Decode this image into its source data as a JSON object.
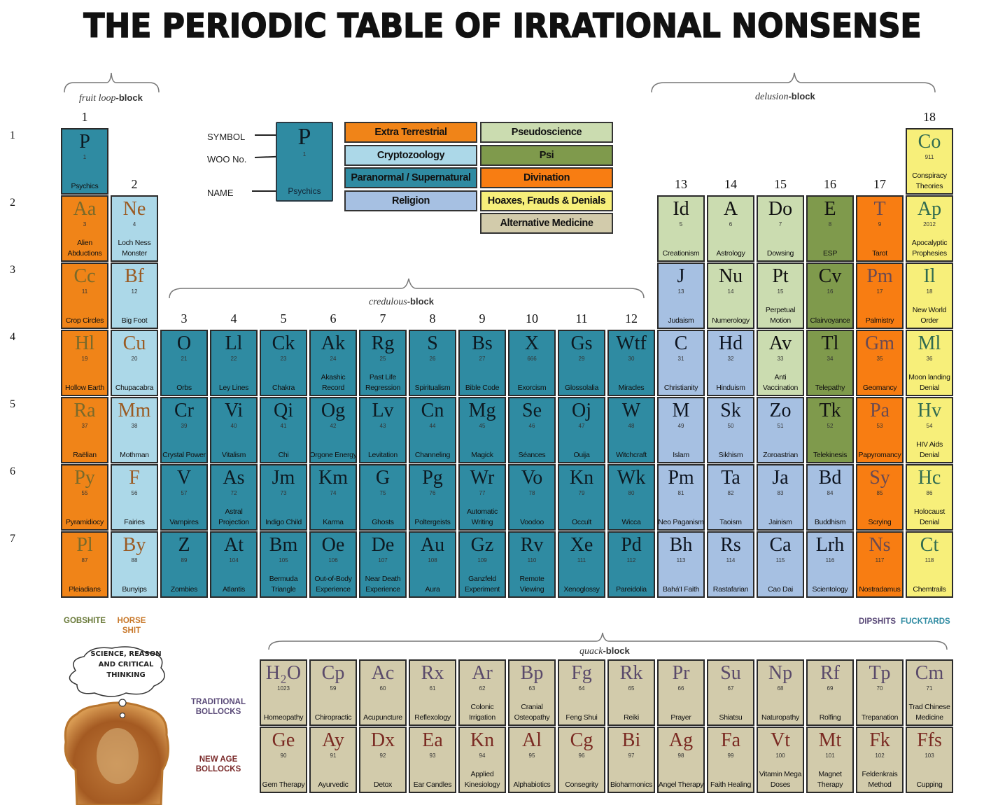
{
  "title": "THE PERIODIC TABLE OF IRRATIONAL NONSENSE",
  "blocks": {
    "fruit_loop": {
      "italic": "fruit loop",
      "bold": "-block"
    },
    "delusion": {
      "italic": "delusion",
      "bold": "-block"
    },
    "credulous": {
      "italic": "credulous",
      "bold": "-block"
    },
    "quack": {
      "italic": "quack",
      "bold": "-block"
    }
  },
  "groups": [
    "1",
    "2",
    "3",
    "4",
    "5",
    "6",
    "7",
    "8",
    "9",
    "10",
    "11",
    "12",
    "13",
    "14",
    "15",
    "16",
    "17",
    "18"
  ],
  "periods": [
    "1",
    "2",
    "3",
    "4",
    "5",
    "6",
    "7"
  ],
  "key": {
    "symbol_label": "SYMBOL",
    "woo_label": "WOO No.",
    "name_label": "NAME",
    "sample": {
      "symbol": "P",
      "number": "1",
      "name": "Psychics"
    }
  },
  "categories": {
    "et": {
      "label": "Extra Terrestrial",
      "bg": "#f08418",
      "fg": "#7a6a2a"
    },
    "crypto": {
      "label": "Cryptozoology",
      "bg": "#acd8e8",
      "fg": "#9a5a22"
    },
    "paranormal": {
      "label": "Paranormal / Supernatural",
      "bg": "#2f8ba2",
      "fg": "#0d1a22"
    },
    "religion": {
      "label": "Religion",
      "bg": "#a6c0e2",
      "fg": "#0d1420"
    },
    "pseudo": {
      "label": "Pseudoscience",
      "bg": "#cbdcb0",
      "fg": "#111"
    },
    "psi": {
      "label": "Psi",
      "bg": "#7f9a4c",
      "fg": "#111"
    },
    "divination": {
      "label": "Divination",
      "bg": "#f87d12",
      "fg": "#6a4a52"
    },
    "hoax": {
      "label": "Hoaxes, Frauds & Denials",
      "bg": "#f7ef7a",
      "fg": "#2f6a50"
    },
    "altmed": {
      "label": "Alternative Medicine",
      "bg": "#d2cbab",
      "fg": "#5a4a6a"
    }
  },
  "legend_order": [
    [
      "et",
      "pseudo"
    ],
    [
      "crypto",
      "psi"
    ],
    [
      "paranormal",
      "divination"
    ],
    [
      "religion",
      "hoax"
    ],
    [
      null,
      "altmed"
    ]
  ],
  "elements": [
    {
      "symbol": "P",
      "number": "1",
      "name": "Psychics",
      "cat": "paranormal",
      "group": 1,
      "period": 1
    },
    {
      "symbol": "Co",
      "number": "911",
      "name": "Conspiracy Theories",
      "cat": "hoax",
      "group": 18,
      "period": 1
    },
    {
      "symbol": "Aa",
      "number": "3",
      "name": "Alien Abductions",
      "cat": "et",
      "group": 1,
      "period": 2
    },
    {
      "symbol": "Ne",
      "number": "4",
      "name": "Loch Ness Monster",
      "cat": "crypto",
      "group": 2,
      "period": 2
    },
    {
      "symbol": "Id",
      "number": "5",
      "name": "Creationism",
      "cat": "pseudo",
      "group": 13,
      "period": 2
    },
    {
      "symbol": "A",
      "number": "6",
      "name": "Astrology",
      "cat": "pseudo",
      "group": 14,
      "period": 2
    },
    {
      "symbol": "Do",
      "number": "7",
      "name": "Dowsing",
      "cat": "pseudo",
      "group": 15,
      "period": 2
    },
    {
      "symbol": "E",
      "number": "8",
      "name": "ESP",
      "cat": "psi",
      "group": 16,
      "period": 2
    },
    {
      "symbol": "T",
      "number": "9",
      "name": "Tarot",
      "cat": "divination",
      "group": 17,
      "period": 2
    },
    {
      "symbol": "Ap",
      "number": "2012",
      "name": "Apocalyptic Prophesies",
      "cat": "hoax",
      "group": 18,
      "period": 2
    },
    {
      "symbol": "Cc",
      "number": "11",
      "name": "Crop Circles",
      "cat": "et",
      "group": 1,
      "period": 3
    },
    {
      "symbol": "Bf",
      "number": "12",
      "name": "Big Foot",
      "cat": "crypto",
      "group": 2,
      "period": 3
    },
    {
      "symbol": "J",
      "number": "13",
      "name": "Judaism",
      "cat": "religion",
      "group": 13,
      "period": 3
    },
    {
      "symbol": "Nu",
      "number": "14",
      "name": "Numerology",
      "cat": "pseudo",
      "group": 14,
      "period": 3
    },
    {
      "symbol": "Pt",
      "number": "15",
      "name": "Perpetual Motion",
      "cat": "pseudo",
      "group": 15,
      "period": 3
    },
    {
      "symbol": "Cv",
      "number": "16",
      "name": "Clairvoyance",
      "cat": "psi",
      "group": 16,
      "period": 3
    },
    {
      "symbol": "Pm",
      "number": "17",
      "name": "Palmistry",
      "cat": "divination",
      "group": 17,
      "period": 3
    },
    {
      "symbol": "Il",
      "number": "18",
      "name": "New World Order",
      "cat": "hoax",
      "group": 18,
      "period": 3
    },
    {
      "symbol": "Hl",
      "number": "19",
      "name": "Hollow Earth",
      "cat": "et",
      "group": 1,
      "period": 4
    },
    {
      "symbol": "Cu",
      "number": "20",
      "name": "Chupacabra",
      "cat": "crypto",
      "group": 2,
      "period": 4
    },
    {
      "symbol": "O",
      "number": "21",
      "name": "Orbs",
      "cat": "paranormal",
      "group": 3,
      "period": 4
    },
    {
      "symbol": "Ll",
      "number": "22",
      "name": "Ley Lines",
      "cat": "paranormal",
      "group": 4,
      "period": 4
    },
    {
      "symbol": "Ck",
      "number": "23",
      "name": "Chakra",
      "cat": "paranormal",
      "group": 5,
      "period": 4
    },
    {
      "symbol": "Ak",
      "number": "24",
      "name": "Akashic Record",
      "cat": "paranormal",
      "group": 6,
      "period": 4
    },
    {
      "symbol": "Rg",
      "number": "25",
      "name": "Past Life Regression",
      "cat": "paranormal",
      "group": 7,
      "period": 4
    },
    {
      "symbol": "S",
      "number": "26",
      "name": "Spiritualism",
      "cat": "paranormal",
      "group": 8,
      "period": 4
    },
    {
      "symbol": "Bs",
      "number": "27",
      "name": "Bible Code",
      "cat": "paranormal",
      "group": 9,
      "period": 4
    },
    {
      "symbol": "X",
      "number": "666",
      "name": "Exorcism",
      "cat": "paranormal",
      "group": 10,
      "period": 4
    },
    {
      "symbol": "Gs",
      "number": "29",
      "name": "Glossolalia",
      "cat": "paranormal",
      "group": 11,
      "period": 4
    },
    {
      "symbol": "Wtf",
      "number": "30",
      "name": "Miracles",
      "cat": "paranormal",
      "group": 12,
      "period": 4
    },
    {
      "symbol": "C",
      "number": "31",
      "name": "Christianity",
      "cat": "religion",
      "group": 13,
      "period": 4
    },
    {
      "symbol": "Hd",
      "number": "32",
      "name": "Hinduism",
      "cat": "religion",
      "group": 14,
      "period": 4
    },
    {
      "symbol": "Av",
      "number": "33",
      "name": "Anti Vaccination",
      "cat": "pseudo",
      "group": 15,
      "period": 4
    },
    {
      "symbol": "Tl",
      "number": "34",
      "name": "Telepathy",
      "cat": "psi",
      "group": 16,
      "period": 4
    },
    {
      "symbol": "Gm",
      "number": "35",
      "name": "Geomancy",
      "cat": "divination",
      "group": 17,
      "period": 4
    },
    {
      "symbol": "Ml",
      "number": "36",
      "name": "Moon landing Denial",
      "cat": "hoax",
      "group": 18,
      "period": 4
    },
    {
      "symbol": "Ra",
      "number": "37",
      "name": "Raëlian",
      "cat": "et",
      "group": 1,
      "period": 5
    },
    {
      "symbol": "Mm",
      "number": "38",
      "name": "Mothman",
      "cat": "crypto",
      "group": 2,
      "period": 5
    },
    {
      "symbol": "Cr",
      "number": "39",
      "name": "Crystal Power",
      "cat": "paranormal",
      "group": 3,
      "period": 5
    },
    {
      "symbol": "Vi",
      "number": "40",
      "name": "Vitalism",
      "cat": "paranormal",
      "group": 4,
      "period": 5
    },
    {
      "symbol": "Qi",
      "number": "41",
      "name": "Chi",
      "cat": "paranormal",
      "group": 5,
      "period": 5
    },
    {
      "symbol": "Og",
      "number": "42",
      "name": "Orgone Energy",
      "cat": "paranormal",
      "group": 6,
      "period": 5
    },
    {
      "symbol": "Lv",
      "number": "43",
      "name": "Levitation",
      "cat": "paranormal",
      "group": 7,
      "period": 5
    },
    {
      "symbol": "Cn",
      "number": "44",
      "name": "Channeling",
      "cat": "paranormal",
      "group": 8,
      "period": 5
    },
    {
      "symbol": "Mg",
      "number": "45",
      "name": "Magick",
      "cat": "paranormal",
      "group": 9,
      "period": 5
    },
    {
      "symbol": "Se",
      "number": "46",
      "name": "Séances",
      "cat": "paranormal",
      "group": 10,
      "period": 5
    },
    {
      "symbol": "Oj",
      "number": "47",
      "name": "Ouija",
      "cat": "paranormal",
      "group": 11,
      "period": 5
    },
    {
      "symbol": "W",
      "number": "48",
      "name": "Witchcraft",
      "cat": "paranormal",
      "group": 12,
      "period": 5
    },
    {
      "symbol": "M",
      "number": "49",
      "name": "Islam",
      "cat": "religion",
      "group": 13,
      "period": 5
    },
    {
      "symbol": "Sk",
      "number": "50",
      "name": "Sikhism",
      "cat": "religion",
      "group": 14,
      "period": 5
    },
    {
      "symbol": "Zo",
      "number": "51",
      "name": "Zoroastrian",
      "cat": "religion",
      "group": 15,
      "period": 5
    },
    {
      "symbol": "Tk",
      "number": "52",
      "name": "Telekinesis",
      "cat": "psi",
      "group": 16,
      "period": 5
    },
    {
      "symbol": "Pa",
      "number": "53",
      "name": "Papyromancy",
      "cat": "divination",
      "group": 17,
      "period": 5
    },
    {
      "symbol": "Hv",
      "number": "54",
      "name": "HIV Aids Denial",
      "cat": "hoax",
      "group": 18,
      "period": 5
    },
    {
      "symbol": "Py",
      "number": "55",
      "name": "Pyramidiocy",
      "cat": "et",
      "group": 1,
      "period": 6
    },
    {
      "symbol": "F",
      "number": "56",
      "name": "Fairies",
      "cat": "crypto",
      "group": 2,
      "period": 6
    },
    {
      "symbol": "V",
      "number": "57",
      "name": "Vampires",
      "cat": "paranormal",
      "group": 3,
      "period": 6
    },
    {
      "symbol": "As",
      "number": "72",
      "name": "Astral Projection",
      "cat": "paranormal",
      "group": 4,
      "period": 6
    },
    {
      "symbol": "Jm",
      "number": "73",
      "name": "Indigo Child",
      "cat": "paranormal",
      "group": 5,
      "period": 6
    },
    {
      "symbol": "Km",
      "number": "74",
      "name": "Karma",
      "cat": "paranormal",
      "group": 6,
      "period": 6
    },
    {
      "symbol": "G",
      "number": "75",
      "name": "Ghosts",
      "cat": "paranormal",
      "group": 7,
      "period": 6
    },
    {
      "symbol": "Pg",
      "number": "76",
      "name": "Poltergeists",
      "cat": "paranormal",
      "group": 8,
      "period": 6
    },
    {
      "symbol": "Wr",
      "number": "77",
      "name": "Automatic Writing",
      "cat": "paranormal",
      "group": 9,
      "period": 6
    },
    {
      "symbol": "Vo",
      "number": "78",
      "name": "Voodoo",
      "cat": "paranormal",
      "group": 10,
      "period": 6
    },
    {
      "symbol": "Kn",
      "number": "79",
      "name": "Occult",
      "cat": "paranormal",
      "group": 11,
      "period": 6
    },
    {
      "symbol": "Wk",
      "number": "80",
      "name": "Wicca",
      "cat": "paranormal",
      "group": 12,
      "period": 6
    },
    {
      "symbol": "Pm",
      "number": "81",
      "name": "Neo Paganism",
      "cat": "religion",
      "group": 13,
      "period": 6
    },
    {
      "symbol": "Ta",
      "number": "82",
      "name": "Taoism",
      "cat": "religion",
      "group": 14,
      "period": 6
    },
    {
      "symbol": "Ja",
      "number": "83",
      "name": "Jainism",
      "cat": "religion",
      "group": 15,
      "period": 6
    },
    {
      "symbol": "Bd",
      "number": "84",
      "name": "Buddhism",
      "cat": "religion",
      "group": 16,
      "period": 6
    },
    {
      "symbol": "Sy",
      "number": "85",
      "name": "Scrying",
      "cat": "divination",
      "group": 17,
      "period": 6
    },
    {
      "symbol": "Hc",
      "number": "86",
      "name": "Holocaust Denial",
      "cat": "hoax",
      "group": 18,
      "period": 6
    },
    {
      "symbol": "Pl",
      "number": "87",
      "name": "Pleiadians",
      "cat": "et",
      "group": 1,
      "period": 7
    },
    {
      "symbol": "By",
      "number": "88",
      "name": "Bunyips",
      "cat": "crypto",
      "group": 2,
      "period": 7
    },
    {
      "symbol": "Z",
      "number": "89",
      "name": "Zombies",
      "cat": "paranormal",
      "group": 3,
      "period": 7
    },
    {
      "symbol": "At",
      "number": "104",
      "name": "Atlantis",
      "cat": "paranormal",
      "group": 4,
      "period": 7
    },
    {
      "symbol": "Bm",
      "number": "105",
      "name": "Bermuda Triangle",
      "cat": "paranormal",
      "group": 5,
      "period": 7
    },
    {
      "symbol": "Oe",
      "number": "106",
      "name": "Out-of-Body Experience",
      "cat": "paranormal",
      "group": 6,
      "period": 7
    },
    {
      "symbol": "De",
      "number": "107",
      "name": "Near Death Experience",
      "cat": "paranormal",
      "group": 7,
      "period": 7
    },
    {
      "symbol": "Au",
      "number": "108",
      "name": "Aura",
      "cat": "paranormal",
      "group": 8,
      "period": 7
    },
    {
      "symbol": "Gz",
      "number": "109",
      "name": "Ganzfeld Experiment",
      "cat": "paranormal",
      "group": 9,
      "period": 7
    },
    {
      "symbol": "Rv",
      "number": "110",
      "name": "Remote Viewing",
      "cat": "paranormal",
      "group": 10,
      "period": 7
    },
    {
      "symbol": "Xe",
      "number": "111",
      "name": "Xenoglossy",
      "cat": "paranormal",
      "group": 11,
      "period": 7
    },
    {
      "symbol": "Pd",
      "number": "112",
      "name": "Pareidolia",
      "cat": "paranormal",
      "group": 12,
      "period": 7
    },
    {
      "symbol": "Bh",
      "number": "113",
      "name": "Bahá'I Faith",
      "cat": "religion",
      "group": 13,
      "period": 7
    },
    {
      "symbol": "Rs",
      "number": "114",
      "name": "Rastafarian",
      "cat": "religion",
      "group": 14,
      "period": 7
    },
    {
      "symbol": "Ca",
      "number": "115",
      "name": "Cao Dai",
      "cat": "religion",
      "group": 15,
      "period": 7
    },
    {
      "symbol": "Lrh",
      "number": "116",
      "name": "Scientology",
      "cat": "religion",
      "group": 16,
      "period": 7
    },
    {
      "symbol": "Ns",
      "number": "117",
      "name": "Nostradamus",
      "cat": "divination",
      "group": 17,
      "period": 7
    },
    {
      "symbol": "Ct",
      "number": "118",
      "name": "Chemtrails",
      "cat": "hoax",
      "group": 18,
      "period": 7
    }
  ],
  "quack_rows": [
    {
      "label": "TRADITIONAL BOLLOCKS",
      "color": "#5a4a78",
      "symbol_color": "#5a4a6a",
      "cells": [
        {
          "symbol": "H₂O",
          "number": "1023",
          "name": "Homeopathy"
        },
        {
          "symbol": "Cp",
          "number": "59",
          "name": "Chiropractic"
        },
        {
          "symbol": "Ac",
          "number": "60",
          "name": "Acupuncture"
        },
        {
          "symbol": "Rx",
          "number": "61",
          "name": "Reflexology"
        },
        {
          "symbol": "Ar",
          "number": "62",
          "name": "Colonic Irrigation"
        },
        {
          "symbol": "Bp",
          "number": "63",
          "name": "Cranial Osteopathy"
        },
        {
          "symbol": "Fg",
          "number": "64",
          "name": "Feng Shui"
        },
        {
          "symbol": "Rk",
          "number": "65",
          "name": "Reiki"
        },
        {
          "symbol": "Pr",
          "number": "66",
          "name": "Prayer"
        },
        {
          "symbol": "Su",
          "number": "67",
          "name": "Shiatsu"
        },
        {
          "symbol": "Np",
          "number": "68",
          "name": "Naturopathy"
        },
        {
          "symbol": "Rf",
          "number": "69",
          "name": "Rolfing"
        },
        {
          "symbol": "Tp",
          "number": "70",
          "name": "Trepanation"
        },
        {
          "symbol": "Cm",
          "number": "71",
          "name": "Trad Chinese Medicine"
        }
      ]
    },
    {
      "label": "NEW AGE BOLLOCKS",
      "color": "#7a2a2a",
      "symbol_color": "#7a2a22",
      "cells": [
        {
          "symbol": "Ge",
          "number": "90",
          "name": "Gem Therapy"
        },
        {
          "symbol": "Ay",
          "number": "91",
          "name": "Ayurvedic"
        },
        {
          "symbol": "Dx",
          "number": "92",
          "name": "Detox"
        },
        {
          "symbol": "Ea",
          "number": "93",
          "name": "Ear Candles"
        },
        {
          "symbol": "Kn",
          "number": "94",
          "name": "Applied Kinesiology"
        },
        {
          "symbol": "Al",
          "number": "95",
          "name": "Alphabiotics"
        },
        {
          "symbol": "Cg",
          "number": "96",
          "name": "Consegrity"
        },
        {
          "symbol": "Bi",
          "number": "97",
          "name": "Bioharmonics"
        },
        {
          "symbol": "Ag",
          "number": "98",
          "name": "Angel Therapy"
        },
        {
          "symbol": "Fa",
          "number": "99",
          "name": "Faith Healing"
        },
        {
          "symbol": "Vt",
          "number": "100",
          "name": "Vitamin Mega Doses"
        },
        {
          "symbol": "Mt",
          "number": "101",
          "name": "Magnet Therapy"
        },
        {
          "symbol": "Fk",
          "number": "102",
          "name": "Feldenkrais Method"
        },
        {
          "symbol": "Ffs",
          "number": "103",
          "name": "Cupping"
        }
      ]
    }
  ],
  "tags": {
    "gobshite": {
      "label": "GOBSHITE",
      "color": "#6a7a3a"
    },
    "horse_shit": {
      "label": "HORSE SHIT",
      "color": "#c8782a"
    },
    "dipshits": {
      "label": "DIPSHITS",
      "color": "#5a4a78"
    },
    "fucktards": {
      "label": "FUCKTARDS",
      "color": "#2f8ba2"
    }
  },
  "thought_bubble": "SCIENCE, REASON AND CRITICAL THINKING"
}
